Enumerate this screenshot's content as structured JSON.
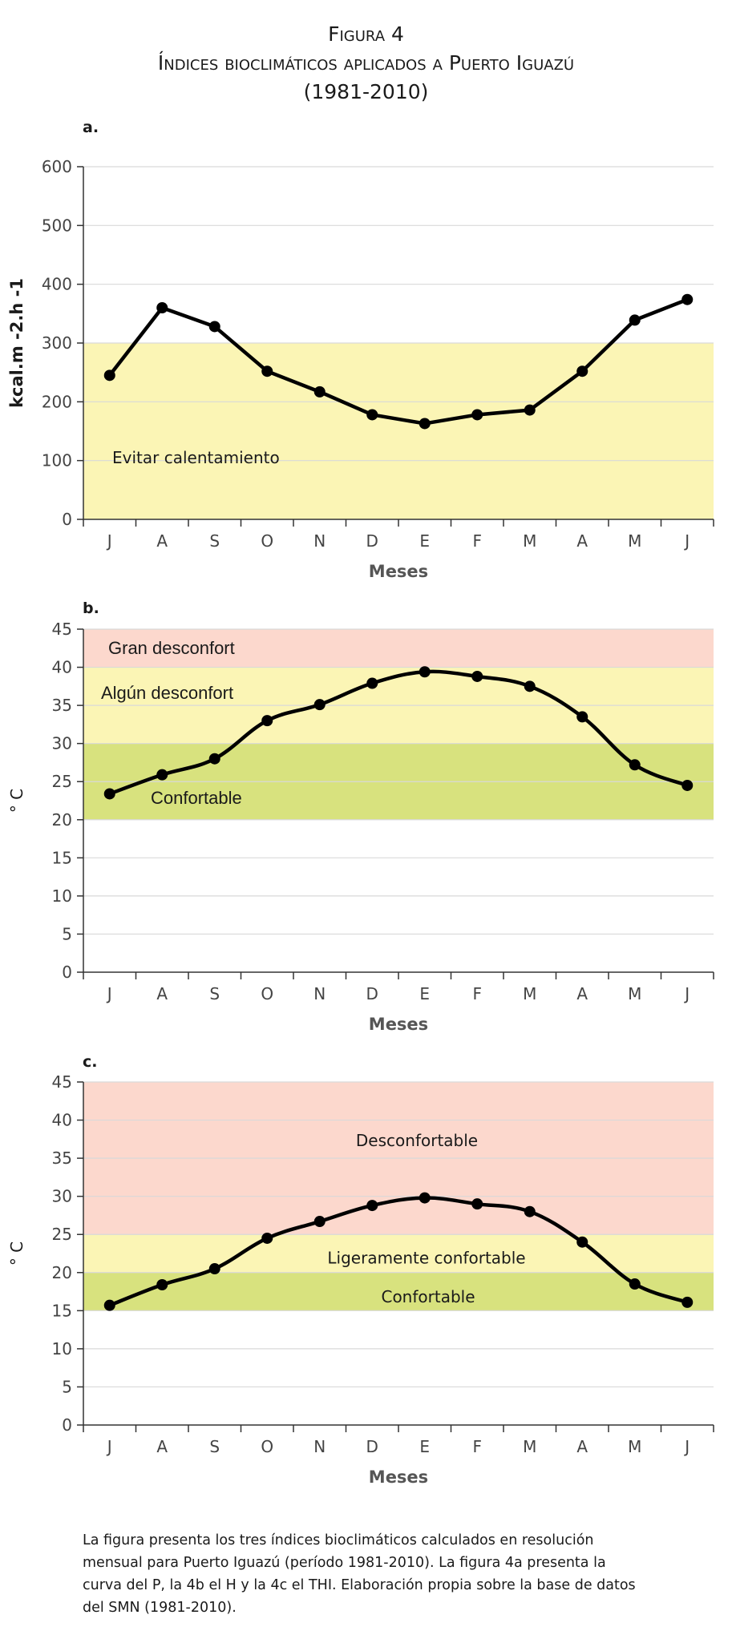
{
  "figure": {
    "label": "Figura 4",
    "title": "Índices bioclimáticos aplicados a Puerto Iguazú",
    "period": "(1981-2010)"
  },
  "caption": "La figura presenta los tres índices bioclimáticos calculados en resolución mensual para Puerto Iguazú (período 1981-2010). La figura 4a presenta la curva del P, la 4b el H y la 4c el THI. Elaboración propia sobre la base de datos del SMN (1981-2010).",
  "chart_data": [
    {
      "panel": "a.",
      "type": "line",
      "categories": [
        "J",
        "A",
        "S",
        "O",
        "N",
        "D",
        "E",
        "F",
        "M",
        "A",
        "M",
        "J"
      ],
      "values": [
        245,
        360,
        328,
        252,
        217,
        178,
        163,
        178,
        186,
        252,
        339,
        374
      ],
      "xlabel": "Meses",
      "ylabel": "kcal.m -2.h -1",
      "ylim": [
        0,
        600
      ],
      "yticks": [
        0,
        100,
        200,
        300,
        400,
        500,
        600
      ],
      "smooth": false,
      "grid": true,
      "zones": [
        {
          "from": 0,
          "to": 300,
          "color": "#fbf5b5",
          "label": "Evitar calentamiento"
        }
      ]
    },
    {
      "panel": "b.",
      "type": "line",
      "categories": [
        "J",
        "A",
        "S",
        "O",
        "N",
        "D",
        "E",
        "F",
        "M",
        "A",
        "M",
        "J"
      ],
      "values": [
        23.4,
        25.9,
        28.0,
        33.0,
        35.1,
        37.9,
        39.4,
        38.8,
        37.5,
        33.5,
        27.2,
        24.5
      ],
      "xlabel": "Meses",
      "ylabel": "° C",
      "ylim": [
        0,
        45
      ],
      "yticks": [
        0,
        5,
        10,
        15,
        20,
        25,
        30,
        35,
        40,
        45
      ],
      "smooth": true,
      "grid": true,
      "zones": [
        {
          "from": 40,
          "to": 45,
          "color": "#fcd8cd",
          "label": "Gran desconfort"
        },
        {
          "from": 30,
          "to": 40,
          "color": "#fbf5b5",
          "label": "Algún desconfort"
        },
        {
          "from": 20,
          "to": 30,
          "color": "#d8e27e",
          "label": "Confortable"
        }
      ]
    },
    {
      "panel": "c.",
      "type": "line",
      "categories": [
        "J",
        "A",
        "S",
        "O",
        "N",
        "D",
        "E",
        "F",
        "M",
        "A",
        "M",
        "J"
      ],
      "values": [
        15.7,
        18.4,
        20.5,
        24.5,
        26.7,
        28.8,
        29.8,
        29.0,
        28.0,
        24.0,
        18.5,
        16.1
      ],
      "xlabel": "Meses",
      "ylabel": "° C",
      "ylim": [
        0,
        45
      ],
      "yticks": [
        0,
        5,
        10,
        15,
        20,
        25,
        30,
        35,
        40,
        45
      ],
      "smooth": true,
      "grid": true,
      "zones": [
        {
          "from": 25,
          "to": 45,
          "color": "#fcd8cd",
          "label": "Desconfortable"
        },
        {
          "from": 20,
          "to": 25,
          "color": "#fbf5b5",
          "label": "Ligeramente confortable"
        },
        {
          "from": 15,
          "to": 20,
          "color": "#d8e27e",
          "label": "Confortable"
        }
      ]
    }
  ]
}
